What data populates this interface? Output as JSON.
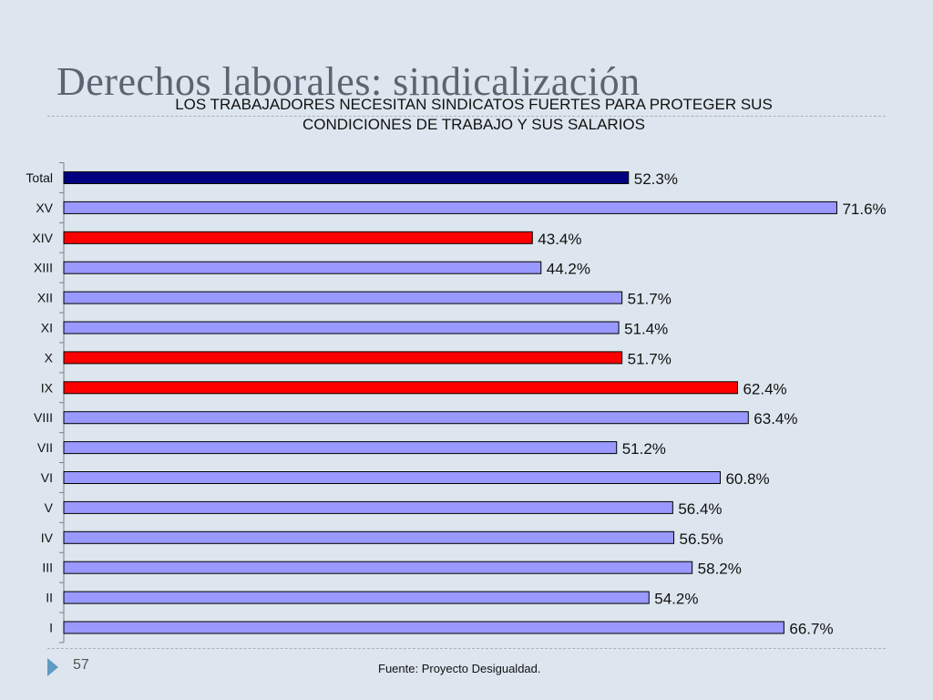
{
  "slide": {
    "title": "Derechos laborales: sindicalización",
    "page_number": "57",
    "source": "Fuente: Proyecto Desigualdad."
  },
  "colors": {
    "total": "#000080",
    "highlight": "#ff0000",
    "default": "#9999ff",
    "bar_stroke": "#000000",
    "axis": "#7f7f7f"
  },
  "chart_data": {
    "type": "bar",
    "orientation": "horizontal",
    "title": "LOS TRABAJADORES NECESITAN SINDICATOS FUERTES PARA PROTEGER SUS CONDICIONES DE TRABAJO Y SUS SALARIOS",
    "categories": [
      "Total",
      "XV",
      "XIV",
      "XIII",
      "XII",
      "XI",
      "X",
      "IX",
      "VIII",
      "VII",
      "VI",
      "V",
      "IV",
      "III",
      "II",
      "I"
    ],
    "values": [
      52.3,
      71.6,
      43.4,
      44.2,
      51.7,
      51.4,
      51.7,
      62.4,
      63.4,
      51.2,
      60.8,
      56.4,
      56.5,
      58.2,
      54.2,
      66.7
    ],
    "labels": [
      "52.3%",
      "71.6%",
      "43.4%",
      "44.2%",
      "51.7%",
      "51.4%",
      "51.7%",
      "62.4%",
      "63.4%",
      "51.2%",
      "60.8%",
      "56.4%",
      "56.5%",
      "58.2%",
      "54.2%",
      "66.7%"
    ],
    "bar_colors": [
      "total",
      "default",
      "highlight",
      "default",
      "default",
      "default",
      "highlight",
      "highlight",
      "default",
      "default",
      "default",
      "default",
      "default",
      "default",
      "default",
      "default"
    ],
    "xlabel": "",
    "ylabel": "",
    "xlim": [
      0,
      100
    ],
    "grid": false,
    "legend": "none"
  }
}
